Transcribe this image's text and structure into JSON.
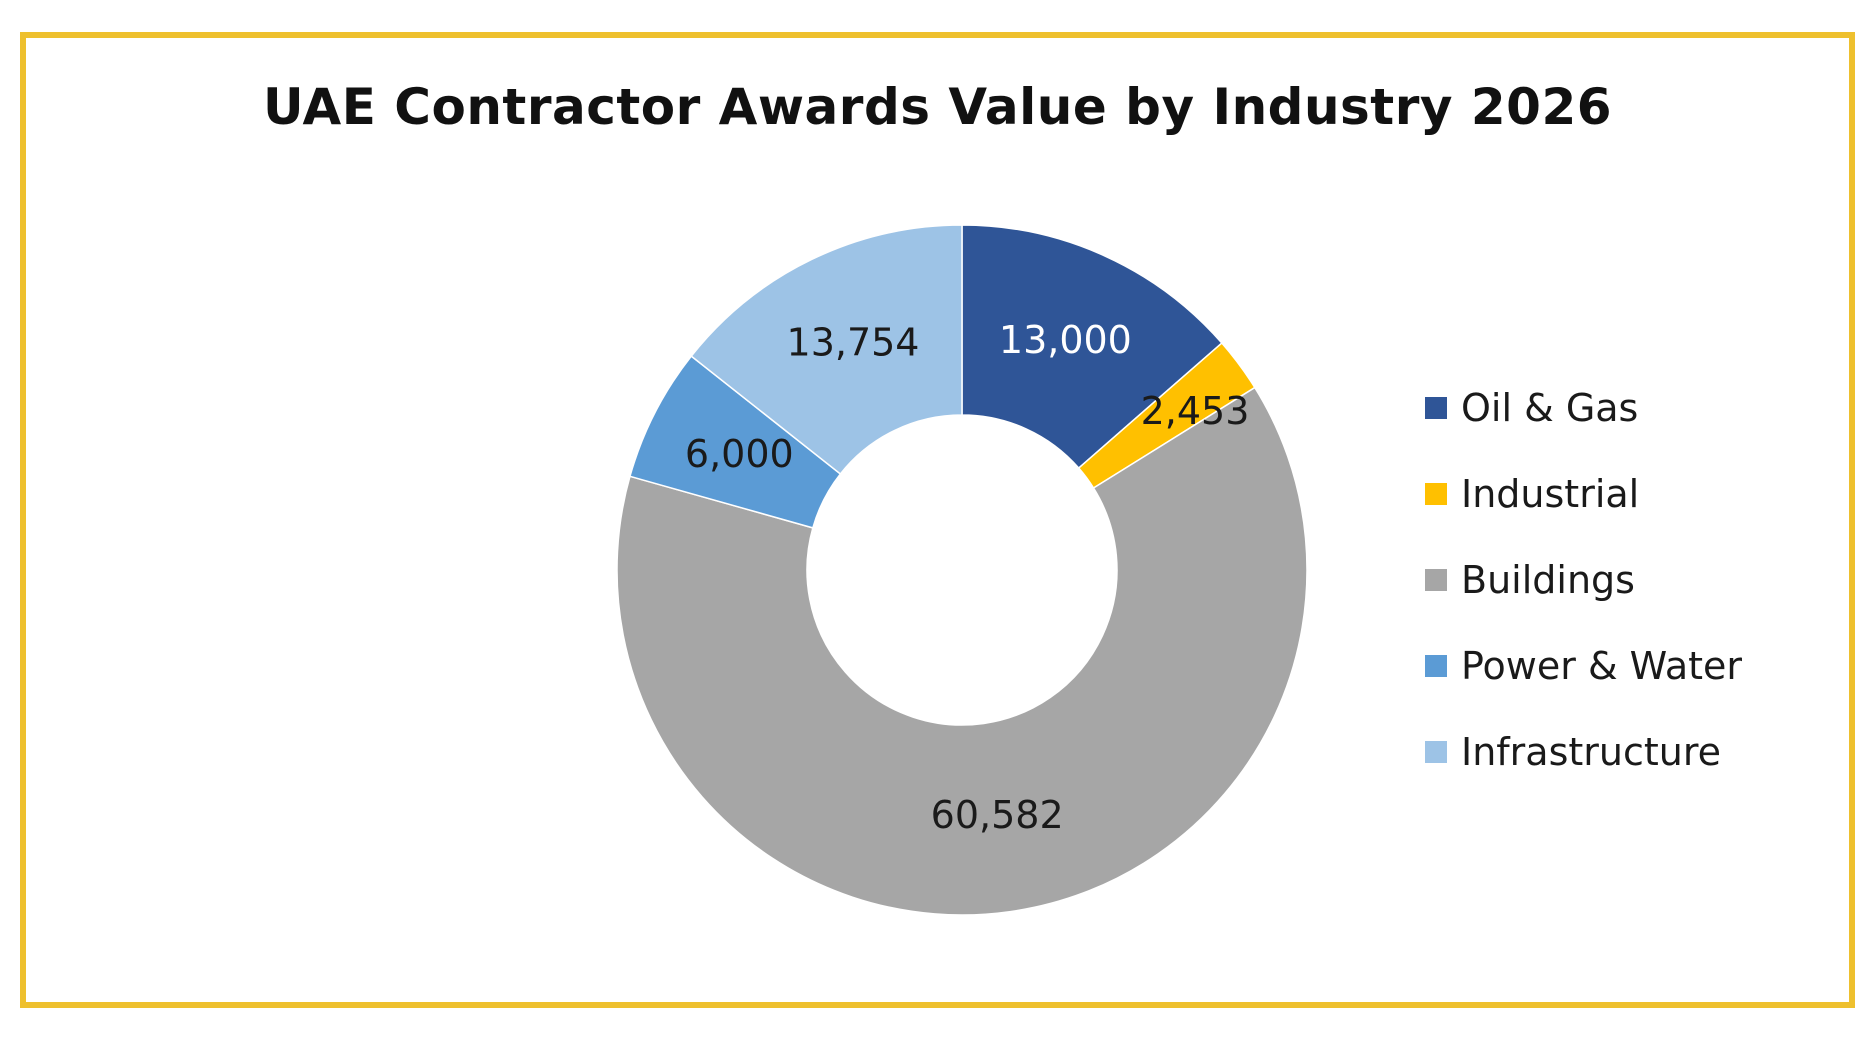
{
  "chart_data": {
    "type": "pie",
    "variant": "donut",
    "title": "UAE Contractor Awards Value by Industry 2026",
    "categories": [
      "Oil & Gas",
      "Industrial",
      "Buildings",
      "Power & Water",
      "Infrastructure"
    ],
    "values": [
      13000,
      2453,
      60582,
      6000,
      13754
    ],
    "value_labels": [
      "13,000",
      "2,453",
      "60,582",
      "6,000",
      "13,754"
    ],
    "colors": [
      "#2F5597",
      "#FFC000",
      "#A6A6A6",
      "#5B9BD5",
      "#9DC3E6"
    ],
    "label_colors": [
      "#ffffff",
      "#1a1a1a",
      "#1a1a1a",
      "#1a1a1a",
      "#1a1a1a"
    ],
    "legend_position": "right",
    "start_angle": "12 o'clock",
    "direction": "clockwise"
  },
  "frame": {
    "border_color": "#EEC02E"
  }
}
